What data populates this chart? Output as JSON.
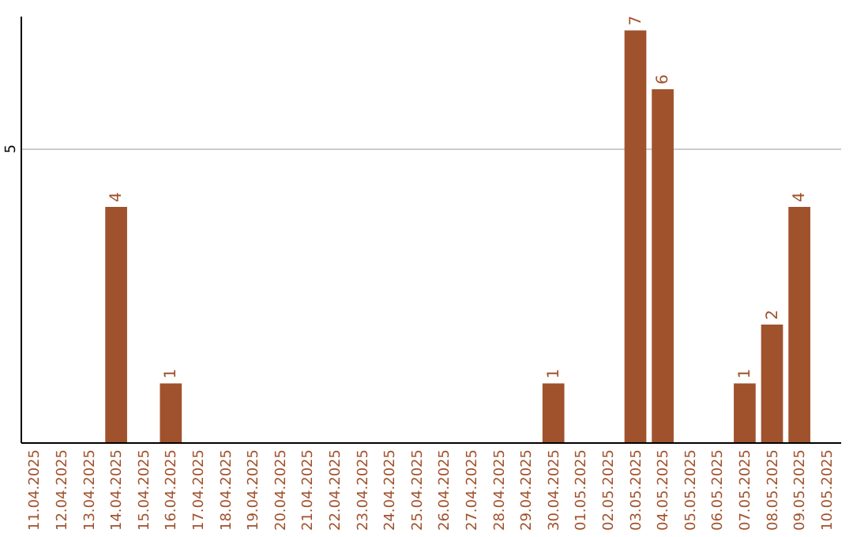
{
  "chart_data": {
    "type": "bar",
    "categories": [
      "11.04.2025",
      "12.04.2025",
      "13.04.2025",
      "14.04.2025",
      "15.04.2025",
      "16.04.2025",
      "17.04.2025",
      "18.04.2025",
      "19.04.2025",
      "20.04.2025",
      "21.04.2025",
      "22.04.2025",
      "23.04.2025",
      "24.04.2025",
      "25.04.2025",
      "26.04.2025",
      "27.04.2025",
      "28.04.2025",
      "29.04.2025",
      "30.04.2025",
      "01.05.2025",
      "02.05.2025",
      "03.05.2025",
      "04.05.2025",
      "05.05.2025",
      "06.05.2025",
      "07.05.2025",
      "08.05.2025",
      "09.05.2025",
      "10.05.2025"
    ],
    "values": [
      0,
      0,
      0,
      4,
      0,
      1,
      0,
      0,
      0,
      0,
      0,
      0,
      0,
      0,
      0,
      0,
      0,
      0,
      0,
      1,
      0,
      0,
      7,
      6,
      0,
      0,
      1,
      2,
      4,
      0
    ],
    "value_labels": [
      null,
      null,
      null,
      "4",
      null,
      "1",
      null,
      null,
      null,
      null,
      null,
      null,
      null,
      null,
      null,
      null,
      null,
      null,
      null,
      "1",
      null,
      null,
      "7",
      "6",
      null,
      null,
      "1",
      "2",
      "4",
      null
    ],
    "color": "#a0522d",
    "ylim": [
      0,
      7.25
    ],
    "yticks": [
      5
    ],
    "grid": "y"
  }
}
